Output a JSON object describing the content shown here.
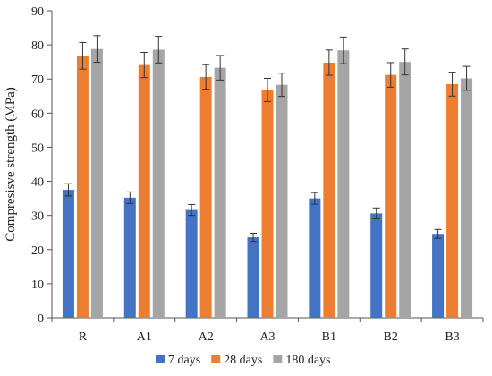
{
  "chart_data": {
    "type": "bar",
    "title": "",
    "xlabel": "",
    "ylabel": "Compresisve strength (MPa)",
    "ylim": [
      0,
      90
    ],
    "yticks": [
      0,
      10,
      20,
      30,
      40,
      50,
      60,
      70,
      80,
      90
    ],
    "categories": [
      "R",
      "A1",
      "A2",
      "A3",
      "B1",
      "B2",
      "B3"
    ],
    "grid": false,
    "legend_position": "bottom",
    "error_bars": true,
    "series": [
      {
        "name": "7 days",
        "color": "#4472C4",
        "values": [
          37.5,
          35.2,
          31.6,
          23.6,
          35.0,
          30.6,
          24.6
        ],
        "errors": [
          1.8,
          1.7,
          1.6,
          1.2,
          1.7,
          1.6,
          1.3
        ]
      },
      {
        "name": "28 days",
        "color": "#ED7D31",
        "values": [
          76.8,
          74.1,
          70.6,
          66.8,
          74.8,
          71.2,
          68.5
        ],
        "errors": [
          3.9,
          3.7,
          3.6,
          3.4,
          3.7,
          3.6,
          3.5
        ]
      },
      {
        "name": "180 days",
        "color": "#A5A5A5",
        "values": [
          78.8,
          78.6,
          73.3,
          68.3,
          78.4,
          75.0,
          70.2
        ],
        "errors": [
          3.9,
          3.9,
          3.6,
          3.4,
          3.9,
          3.8,
          3.5
        ]
      }
    ]
  }
}
